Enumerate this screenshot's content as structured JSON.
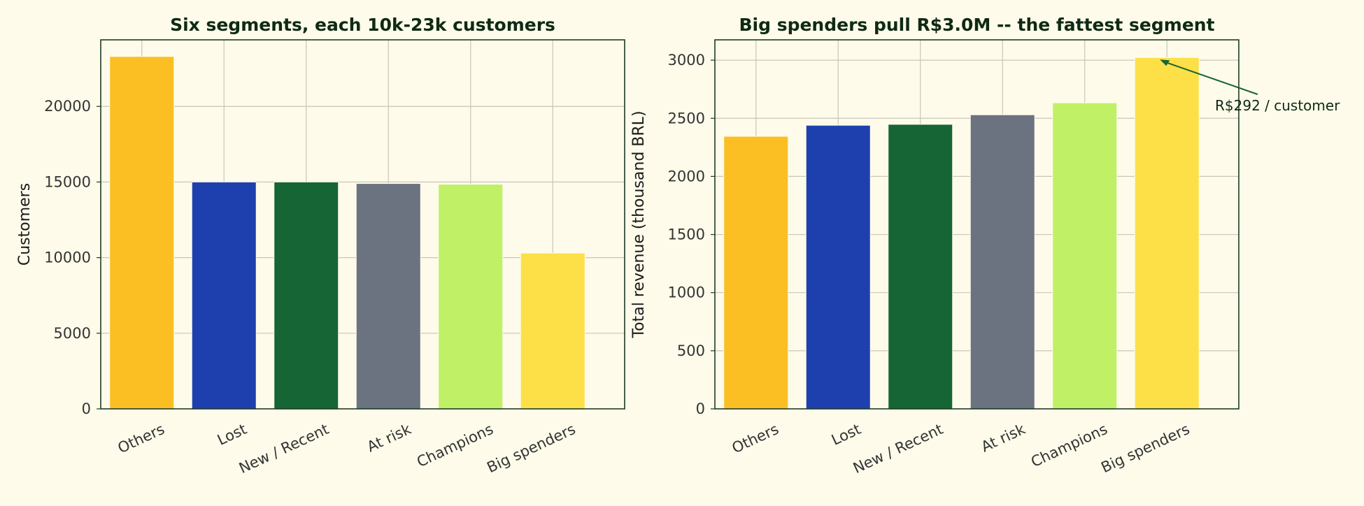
{
  "chart_data": [
    {
      "type": "bar",
      "title": "Six segments, each 10k-23k customers",
      "xlabel": "",
      "ylabel": "Customers",
      "categories": [
        "Others",
        "Lost",
        "New / Recent",
        "At risk",
        "Champions",
        "Big spenders"
      ],
      "values": [
        23300,
        15000,
        15000,
        14900,
        14850,
        10300
      ],
      "colors": [
        "#fbbf24",
        "#1e40af",
        "#166534",
        "#6b7280",
        "#c0f065",
        "#fde047"
      ],
      "ylim": [
        0,
        24400
      ],
      "yticks": [
        0,
        5000,
        10000,
        15000,
        20000
      ],
      "grid": true,
      "legend": "none"
    },
    {
      "type": "bar",
      "title": "Big spenders pull R$3.0M -- the fattest segment",
      "xlabel": "",
      "ylabel": "Total revenue (thousand BRL)",
      "categories": [
        "Others",
        "Lost",
        "New / Recent",
        "At risk",
        "Champions",
        "Big spenders"
      ],
      "values": [
        2345,
        2440,
        2448,
        2530,
        2633,
        3023
      ],
      "colors": [
        "#fbbf24",
        "#1e40af",
        "#166534",
        "#6b7280",
        "#c0f065",
        "#fde047"
      ],
      "ylim": [
        0,
        3175
      ],
      "yticks": [
        0,
        500,
        1000,
        1500,
        2000,
        2500,
        3000
      ],
      "grid": true,
      "legend": "none",
      "annotation": {
        "text": "R$292 / customer",
        "target_category": "Big spenders"
      }
    }
  ]
}
